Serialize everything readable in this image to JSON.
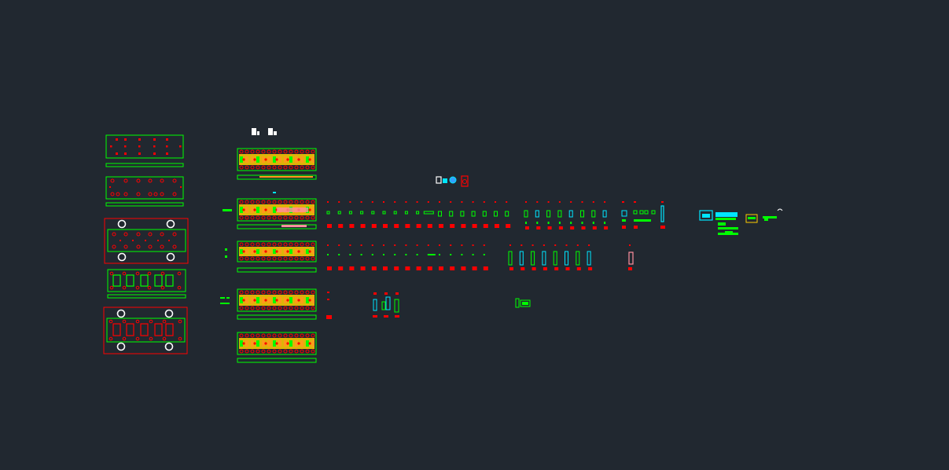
{
  "viewport": {
    "background": "#212830"
  },
  "palette": {
    "red": "#ff0000",
    "green": "#00ff00",
    "yellow": "#ffcc00",
    "orange": "#ff9a1a",
    "cyan": "#00e5ff",
    "white": "#ffffff",
    "pink": "#ff8f9f",
    "blue": "#33a0ff"
  }
}
